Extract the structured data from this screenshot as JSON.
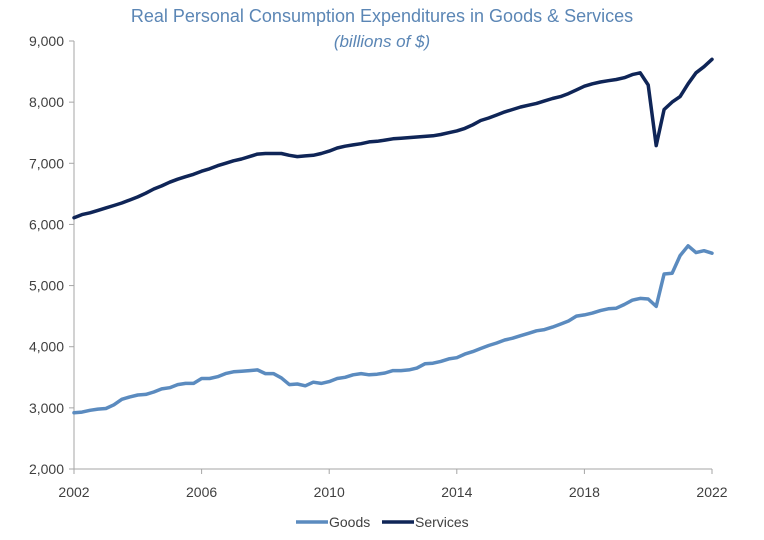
{
  "chart_data": {
    "type": "line",
    "title": "Real Personal Consumption Expenditures in Goods & Services",
    "subtitle": "(billions of $)",
    "xlabel": "",
    "ylabel": "",
    "xlim": [
      2002,
      2022
    ],
    "ylim": [
      2000,
      9000
    ],
    "x_ticks": [
      "2002",
      "2006",
      "2010",
      "2014",
      "2018",
      "2022"
    ],
    "y_ticks": [
      "2,000",
      "3,000",
      "4,000",
      "5,000",
      "6,000",
      "7,000",
      "8,000",
      "9,000"
    ],
    "y_tick_values": [
      2000,
      3000,
      4000,
      5000,
      6000,
      7000,
      8000,
      9000
    ],
    "x_tick_values": [
      2002,
      2006,
      2010,
      2014,
      2018,
      2022
    ],
    "grid": false,
    "legend_position": "bottom-center",
    "series": [
      {
        "name": "Goods",
        "color": "#5b8bbf",
        "points": [
          [
            2002.0,
            2920
          ],
          [
            2002.25,
            2930
          ],
          [
            2002.5,
            2960
          ],
          [
            2002.75,
            2980
          ],
          [
            2003.0,
            2990
          ],
          [
            2003.25,
            3050
          ],
          [
            2003.5,
            3140
          ],
          [
            2003.75,
            3180
          ],
          [
            2004.0,
            3210
          ],
          [
            2004.25,
            3220
          ],
          [
            2004.5,
            3260
          ],
          [
            2004.75,
            3310
          ],
          [
            2005.0,
            3330
          ],
          [
            2005.25,
            3380
          ],
          [
            2005.5,
            3400
          ],
          [
            2005.75,
            3400
          ],
          [
            2006.0,
            3480
          ],
          [
            2006.25,
            3480
          ],
          [
            2006.5,
            3510
          ],
          [
            2006.75,
            3560
          ],
          [
            2007.0,
            3590
          ],
          [
            2007.25,
            3600
          ],
          [
            2007.5,
            3610
          ],
          [
            2007.75,
            3620
          ],
          [
            2008.0,
            3560
          ],
          [
            2008.25,
            3560
          ],
          [
            2008.5,
            3490
          ],
          [
            2008.75,
            3380
          ],
          [
            2009.0,
            3390
          ],
          [
            2009.25,
            3360
          ],
          [
            2009.5,
            3420
          ],
          [
            2009.75,
            3400
          ],
          [
            2010.0,
            3430
          ],
          [
            2010.25,
            3480
          ],
          [
            2010.5,
            3500
          ],
          [
            2010.75,
            3540
          ],
          [
            2011.0,
            3560
          ],
          [
            2011.25,
            3540
          ],
          [
            2011.5,
            3550
          ],
          [
            2011.75,
            3570
          ],
          [
            2012.0,
            3610
          ],
          [
            2012.25,
            3610
          ],
          [
            2012.5,
            3620
          ],
          [
            2012.75,
            3650
          ],
          [
            2013.0,
            3720
          ],
          [
            2013.25,
            3730
          ],
          [
            2013.5,
            3760
          ],
          [
            2013.75,
            3800
          ],
          [
            2014.0,
            3820
          ],
          [
            2014.25,
            3880
          ],
          [
            2014.5,
            3920
          ],
          [
            2014.75,
            3970
          ],
          [
            2015.0,
            4020
          ],
          [
            2015.25,
            4060
          ],
          [
            2015.5,
            4110
          ],
          [
            2015.75,
            4140
          ],
          [
            2016.0,
            4180
          ],
          [
            2016.25,
            4220
          ],
          [
            2016.5,
            4260
          ],
          [
            2016.75,
            4280
          ],
          [
            2017.0,
            4320
          ],
          [
            2017.25,
            4370
          ],
          [
            2017.5,
            4420
          ],
          [
            2017.75,
            4500
          ],
          [
            2018.0,
            4520
          ],
          [
            2018.25,
            4550
          ],
          [
            2018.5,
            4590
          ],
          [
            2018.75,
            4620
          ],
          [
            2019.0,
            4630
          ],
          [
            2019.25,
            4690
          ],
          [
            2019.5,
            4760
          ],
          [
            2019.75,
            4790
          ],
          [
            2020.0,
            4780
          ],
          [
            2020.25,
            4660
          ],
          [
            2020.5,
            5190
          ],
          [
            2020.75,
            5200
          ],
          [
            2021.0,
            5490
          ],
          [
            2021.25,
            5650
          ],
          [
            2021.5,
            5540
          ],
          [
            2021.75,
            5570
          ],
          [
            2022.0,
            5530
          ]
        ]
      },
      {
        "name": "Services",
        "color": "#0f2557",
        "points": [
          [
            2002.0,
            6110
          ],
          [
            2002.25,
            6160
          ],
          [
            2002.5,
            6190
          ],
          [
            2002.75,
            6230
          ],
          [
            2003.0,
            6270
          ],
          [
            2003.25,
            6310
          ],
          [
            2003.5,
            6350
          ],
          [
            2003.75,
            6400
          ],
          [
            2004.0,
            6450
          ],
          [
            2004.25,
            6510
          ],
          [
            2004.5,
            6580
          ],
          [
            2004.75,
            6630
          ],
          [
            2005.0,
            6690
          ],
          [
            2005.25,
            6740
          ],
          [
            2005.5,
            6780
          ],
          [
            2005.75,
            6820
          ],
          [
            2006.0,
            6870
          ],
          [
            2006.25,
            6910
          ],
          [
            2006.5,
            6960
          ],
          [
            2006.75,
            7000
          ],
          [
            2007.0,
            7040
          ],
          [
            2007.25,
            7070
          ],
          [
            2007.5,
            7110
          ],
          [
            2007.75,
            7150
          ],
          [
            2008.0,
            7160
          ],
          [
            2008.25,
            7160
          ],
          [
            2008.5,
            7160
          ],
          [
            2008.75,
            7130
          ],
          [
            2009.0,
            7110
          ],
          [
            2009.25,
            7120
          ],
          [
            2009.5,
            7130
          ],
          [
            2009.75,
            7160
          ],
          [
            2010.0,
            7200
          ],
          [
            2010.25,
            7250
          ],
          [
            2010.5,
            7280
          ],
          [
            2010.75,
            7300
          ],
          [
            2011.0,
            7320
          ],
          [
            2011.25,
            7350
          ],
          [
            2011.5,
            7360
          ],
          [
            2011.75,
            7380
          ],
          [
            2012.0,
            7400
          ],
          [
            2012.25,
            7410
          ],
          [
            2012.5,
            7420
          ],
          [
            2012.75,
            7430
          ],
          [
            2013.0,
            7440
          ],
          [
            2013.25,
            7450
          ],
          [
            2013.5,
            7470
          ],
          [
            2013.75,
            7500
          ],
          [
            2014.0,
            7530
          ],
          [
            2014.25,
            7570
          ],
          [
            2014.5,
            7630
          ],
          [
            2014.75,
            7700
          ],
          [
            2015.0,
            7740
          ],
          [
            2015.25,
            7790
          ],
          [
            2015.5,
            7840
          ],
          [
            2015.75,
            7880
          ],
          [
            2016.0,
            7920
          ],
          [
            2016.25,
            7950
          ],
          [
            2016.5,
            7980
          ],
          [
            2016.75,
            8020
          ],
          [
            2017.0,
            8060
          ],
          [
            2017.25,
            8090
          ],
          [
            2017.5,
            8140
          ],
          [
            2017.75,
            8200
          ],
          [
            2018.0,
            8260
          ],
          [
            2018.25,
            8300
          ],
          [
            2018.5,
            8330
          ],
          [
            2018.75,
            8350
          ],
          [
            2019.0,
            8370
          ],
          [
            2019.25,
            8400
          ],
          [
            2019.5,
            8450
          ],
          [
            2019.75,
            8480
          ],
          [
            2020.0,
            8280
          ],
          [
            2020.25,
            7290
          ],
          [
            2020.5,
            7880
          ],
          [
            2020.75,
            8000
          ],
          [
            2021.0,
            8090
          ],
          [
            2021.25,
            8300
          ],
          [
            2021.5,
            8480
          ],
          [
            2021.75,
            8580
          ],
          [
            2022.0,
            8700
          ]
        ]
      }
    ]
  }
}
